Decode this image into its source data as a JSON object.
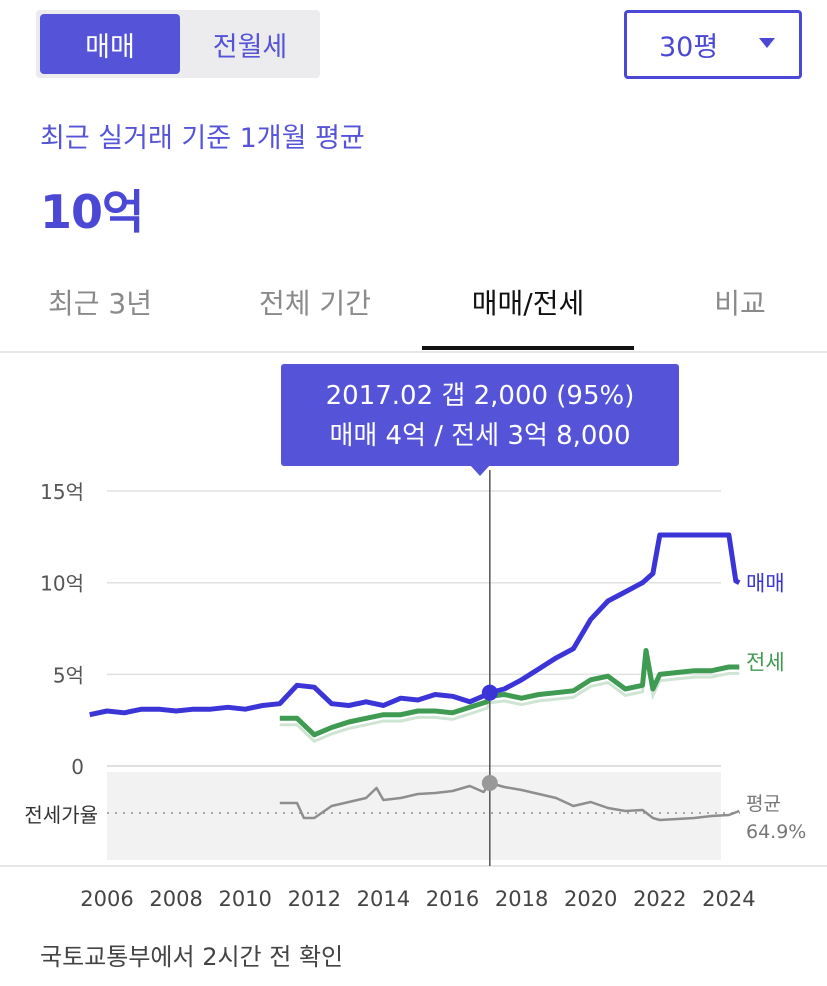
{
  "segment": {
    "active": "매매",
    "inactive": "전월세"
  },
  "size_select": {
    "value": "30평"
  },
  "summary": {
    "subtitle": "최근 실거래 기준 1개월 평균",
    "price": "10억"
  },
  "tabs": [
    "최근 3년",
    "전체 기간",
    "매매/전세",
    "비교"
  ],
  "active_tab": "매매/전세",
  "tooltip": {
    "line1": "2017.02  갭 2,000 (95%)",
    "line2": "매매 4억 / 전세 3억 8,000"
  },
  "colors": {
    "accent": "#5554d8",
    "sale": "#3b35d8",
    "jeonse": "#3f9a52",
    "ratio": "#8e8e8e"
  },
  "footer": "국토교통부에서 2시간 전 확인",
  "chart_data": {
    "type": "line",
    "title": "",
    "xlabel": "",
    "ylabel": "",
    "unit": "억",
    "ylim": [
      0,
      15
    ],
    "xlim": [
      2005.5,
      2025
    ],
    "y_ticks": [
      "15억",
      "10억",
      "5억",
      "0"
    ],
    "x_ticks": [
      "2006",
      "2008",
      "2010",
      "2012",
      "2014",
      "2016",
      "2018",
      "2020",
      "2022",
      "2024"
    ],
    "grid": true,
    "legend_placement": "right",
    "highlight": {
      "x": 2017.08,
      "sale": 4.0,
      "jeonse": 3.8,
      "ratio": 95
    },
    "series": [
      {
        "name": "매매",
        "x": [
          2005.5,
          2006.0,
          2006.5,
          2007.0,
          2007.5,
          2008.0,
          2008.5,
          2009.0,
          2009.5,
          2010.0,
          2010.5,
          2011.0,
          2011.5,
          2012.0,
          2012.5,
          2013.0,
          2013.5,
          2014.0,
          2014.5,
          2015.0,
          2015.5,
          2016.0,
          2016.5,
          2017.0,
          2017.08,
          2017.5,
          2018.0,
          2018.5,
          2019.0,
          2019.5,
          2020.0,
          2020.5,
          2021.0,
          2021.5,
          2021.8,
          2022.0,
          2022.5,
          2023.0,
          2023.5,
          2024.0,
          2024.2,
          2024.3
        ],
        "values": [
          2.8,
          3.0,
          2.9,
          3.1,
          3.1,
          3.0,
          3.1,
          3.1,
          3.2,
          3.1,
          3.3,
          3.4,
          4.4,
          4.3,
          3.4,
          3.3,
          3.5,
          3.3,
          3.7,
          3.6,
          3.9,
          3.8,
          3.5,
          3.9,
          4.0,
          4.2,
          4.7,
          5.3,
          5.9,
          6.4,
          8.0,
          9.0,
          9.5,
          10.0,
          10.5,
          12.6,
          12.6,
          12.6,
          12.6,
          12.6,
          10.1,
          10.0
        ]
      },
      {
        "name": "전세",
        "x": [
          2011.0,
          2011.5,
          2012.0,
          2012.5,
          2013.0,
          2013.5,
          2014.0,
          2014.5,
          2015.0,
          2015.5,
          2016.0,
          2016.5,
          2017.0,
          2017.08,
          2017.5,
          2018.0,
          2018.5,
          2019.0,
          2019.5,
          2020.0,
          2020.5,
          2021.0,
          2021.5,
          2021.6,
          2021.8,
          2022.0,
          2022.5,
          2023.0,
          2023.5,
          2024.0,
          2024.3
        ],
        "values": [
          2.6,
          2.6,
          1.7,
          2.1,
          2.4,
          2.6,
          2.8,
          2.8,
          3.0,
          3.0,
          2.9,
          3.2,
          3.5,
          3.8,
          3.9,
          3.7,
          3.9,
          4.0,
          4.1,
          4.7,
          4.9,
          4.2,
          4.4,
          6.3,
          4.2,
          5.0,
          5.1,
          5.2,
          5.2,
          5.4,
          5.4
        ]
      },
      {
        "name": "전세가율",
        "x": [
          2011.0,
          2011.5,
          2011.7,
          2012.0,
          2012.5,
          2013.0,
          2013.5,
          2013.8,
          2014.0,
          2014.5,
          2015.0,
          2015.5,
          2016.0,
          2016.5,
          2016.9,
          2017.08,
          2017.5,
          2018.0,
          2018.5,
          2019.0,
          2019.5,
          2020.0,
          2020.5,
          2021.0,
          2021.5,
          2021.8,
          2022.0,
          2022.5,
          2023.0,
          2023.5,
          2024.0,
          2024.3
        ],
        "values": [
          75,
          75,
          60,
          60,
          72,
          76,
          80,
          90,
          78,
          80,
          84,
          85,
          87,
          92,
          86,
          95,
          91,
          88,
          84,
          80,
          72,
          76,
          70,
          67,
          68,
          60,
          58,
          59,
          60,
          62,
          63,
          67
        ]
      }
    ],
    "ratio_reference": {
      "label": "평균",
      "value": "64.9%"
    }
  }
}
